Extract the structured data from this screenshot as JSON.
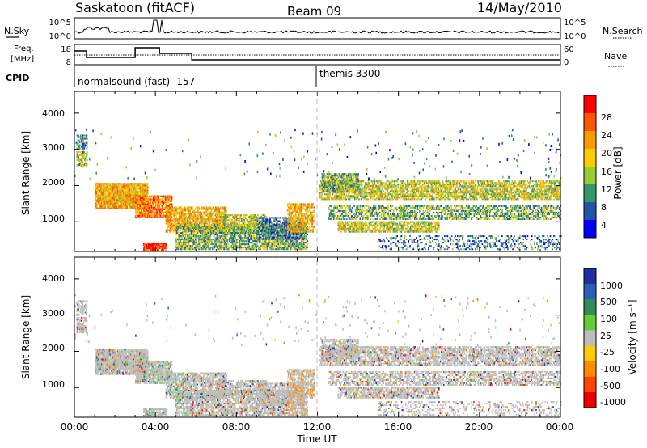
{
  "header": {
    "title": "Saskatoon (fitACF)",
    "beam": "Beam 09",
    "date": "14/May/2010"
  },
  "side_labels": {
    "nsky": "N.Sky",
    "nsearch": "N.Search",
    "freq_line1": "Freq.",
    "freq_line2": "[MHz]",
    "nave": "Nave",
    "cpid": "CPID"
  },
  "noise_panel": {
    "left_ticks": [
      "10^5",
      "10^0"
    ],
    "right_ticks": [
      "10^5",
      "10^0"
    ]
  },
  "freq_panel": {
    "left_ticks": [
      "18",
      "8"
    ],
    "right_ticks": [
      "60",
      "0"
    ]
  },
  "cpid_panel": {
    "modes": [
      {
        "label": "normalsound (fast) -157",
        "start_hour": 0
      },
      {
        "label": "themis 3300",
        "start_hour": 12
      }
    ]
  },
  "chart_data": [
    {
      "type": "heatmap",
      "ylabel": "Slant Range [km]",
      "xlabel": "",
      "ylim": [
        180,
        4600
      ],
      "xlim": [
        0,
        24
      ],
      "y_ticks": [
        "4000",
        "3000",
        "2000",
        "1000"
      ],
      "colorbar": {
        "label": "Power [dB]",
        "ticks": [
          "28",
          "24",
          "20",
          "16",
          "12",
          "8",
          "4"
        ],
        "colors": [
          "#ff0000",
          "#ff5500",
          "#ff9900",
          "#ffcc00",
          "#99cc33",
          "#339966",
          "#2255aa",
          "#0000ff"
        ]
      }
    },
    {
      "type": "heatmap",
      "ylabel": "Slant Range [km]",
      "xlabel": "Time UT",
      "ylim": [
        180,
        4600
      ],
      "xlim": [
        0,
        24
      ],
      "y_ticks": [
        "4000",
        "3000",
        "2000",
        "1000"
      ],
      "x_ticks": [
        "00:00",
        "04:00",
        "08:00",
        "12:00",
        "16:00",
        "20:00",
        "00:00"
      ],
      "colorbar": {
        "label": "Velocity [m s⁻¹]",
        "ticks": [
          "1000",
          "500",
          "100",
          "25",
          "-25",
          "-100",
          "-500",
          "-1000"
        ],
        "colors": [
          "#1f2f9f",
          "#2a5fb5",
          "#338a5a",
          "#66cc33",
          "#bdbdbd",
          "#ffcc00",
          "#ff8c00",
          "#ff4400",
          "#ee0000"
        ]
      }
    }
  ],
  "colors": {
    "ground_scatter": "#bdbdbd"
  }
}
